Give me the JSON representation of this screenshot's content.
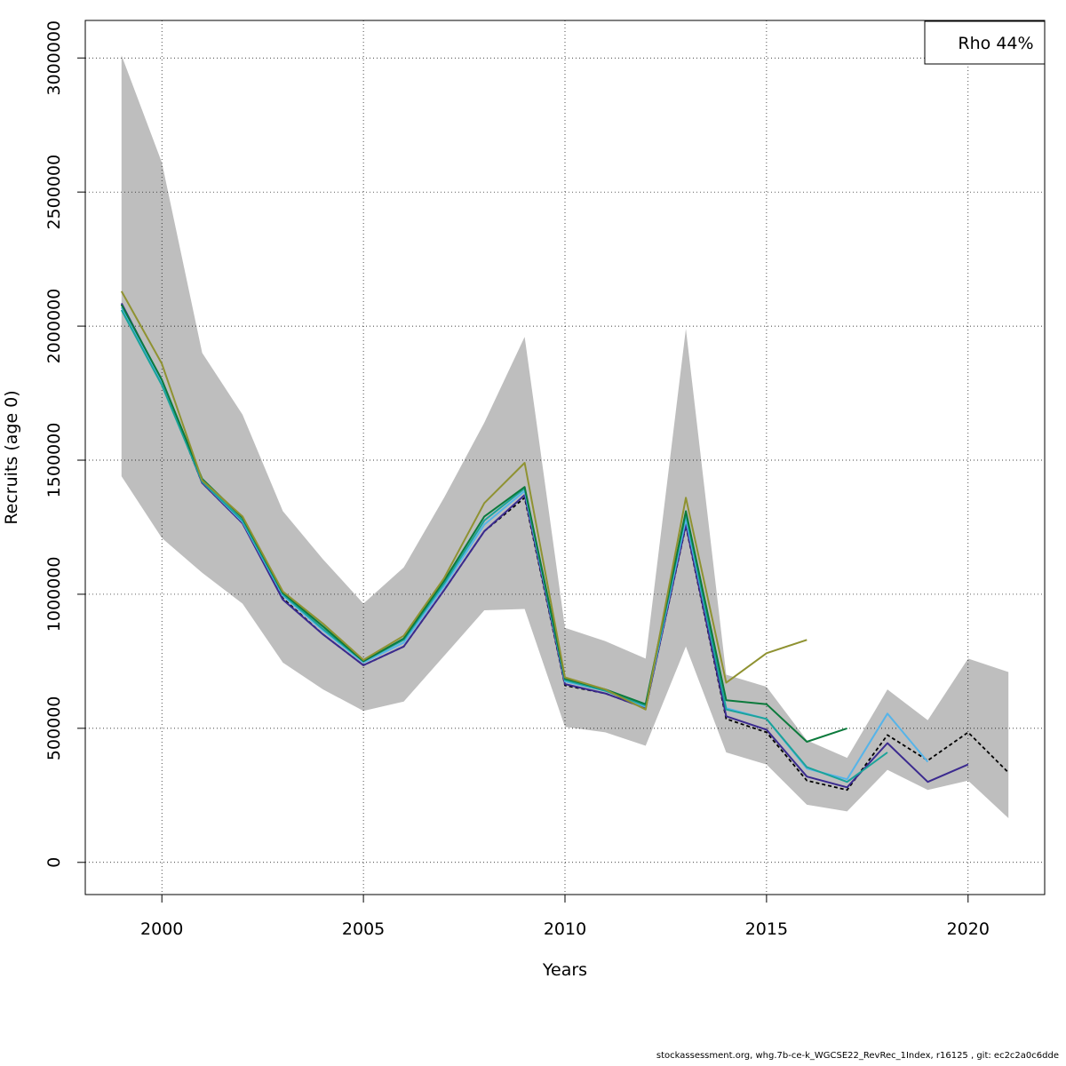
{
  "chart_data": {
    "type": "line",
    "xlabel": "Years",
    "ylabel": "Recruits (age 0)",
    "xlim": [
      1998.1,
      2021.9
    ],
    "ylim": [
      -120000,
      3140000
    ],
    "x_ticks": [
      2000,
      2005,
      2010,
      2015,
      2020
    ],
    "y_ticks": [
      0,
      500000,
      1000000,
      1500000,
      2000000,
      2500000,
      3000000
    ],
    "grid": true,
    "legend_text": "Rho 44%",
    "legend_position": "top-right",
    "band": {
      "color": "#bebebe",
      "x": [
        1999,
        2000,
        2001,
        2002,
        2003,
        2004,
        2005,
        2006,
        2007,
        2008,
        2009,
        2010,
        2011,
        2012,
        2013,
        2014,
        2015,
        2016,
        2017,
        2018,
        2019,
        2020,
        2021
      ],
      "upper": [
        3010000,
        2610000,
        1900000,
        1670000,
        1310000,
        1130000,
        965000,
        1100000,
        1360000,
        1640000,
        1960000,
        875000,
        825000,
        760000,
        1990000,
        700000,
        655000,
        455000,
        390000,
        645000,
        530000,
        760000,
        710000
      ],
      "lower": [
        1440000,
        1210000,
        1080000,
        965000,
        745000,
        645000,
        565000,
        600000,
        770000,
        940000,
        945000,
        505000,
        485000,
        435000,
        805000,
        410000,
        365000,
        215000,
        190000,
        345000,
        270000,
        305000,
        165000
      ]
    },
    "series": [
      {
        "color": "#000000",
        "dashed": true,
        "x": [
          1999,
          2000,
          2001,
          2002,
          2003,
          2004,
          2005,
          2006,
          2007,
          2008,
          2009,
          2010,
          2011,
          2012,
          2013,
          2014,
          2015,
          2016,
          2017,
          2018,
          2019,
          2020,
          2021
        ],
        "y": [
          2080000,
          1790000,
          1415000,
          1265000,
          985000,
          850000,
          735000,
          805000,
          1015000,
          1235000,
          1360000,
          660000,
          630000,
          575000,
          1255000,
          535000,
          485000,
          305000,
          270000,
          475000,
          380000,
          485000,
          335000
        ]
      },
      {
        "color": "#3b2a8f",
        "x": [
          1999,
          2000,
          2001,
          2002,
          2003,
          2004,
          2005,
          2006,
          2007,
          2008,
          2009,
          2010,
          2011,
          2012,
          2013,
          2014,
          2015,
          2016,
          2017,
          2018,
          2019,
          2020
        ],
        "y": [
          2085000,
          1795000,
          1415000,
          1265000,
          980000,
          850000,
          735000,
          805000,
          1015000,
          1235000,
          1370000,
          665000,
          630000,
          575000,
          1260000,
          545000,
          495000,
          320000,
          280000,
          445000,
          300000,
          365000
        ]
      },
      {
        "color": "#56b4e9",
        "x": [
          1999,
          2000,
          2001,
          2002,
          2003,
          2004,
          2005,
          2006,
          2007,
          2008,
          2009,
          2010,
          2011,
          2012,
          2013,
          2014,
          2015,
          2016,
          2017,
          2018,
          2019
        ],
        "y": [
          2070000,
          1790000,
          1420000,
          1270000,
          995000,
          865000,
          745000,
          820000,
          1030000,
          1260000,
          1385000,
          675000,
          640000,
          580000,
          1280000,
          575000,
          535000,
          350000,
          310000,
          555000,
          375000
        ]
      },
      {
        "color": "#1aa39a",
        "x": [
          1999,
          2000,
          2001,
          2002,
          2003,
          2004,
          2005,
          2006,
          2007,
          2008,
          2009,
          2010,
          2011,
          2012,
          2013,
          2014,
          2015,
          2016,
          2017,
          2018
        ],
        "y": [
          2060000,
          1780000,
          1420000,
          1275000,
          1000000,
          870000,
          750000,
          830000,
          1040000,
          1275000,
          1395000,
          680000,
          640000,
          585000,
          1300000,
          570000,
          535000,
          355000,
          300000,
          410000
        ]
      },
      {
        "color": "#0c7a3c",
        "x": [
          1999,
          2000,
          2001,
          2002,
          2003,
          2004,
          2005,
          2006,
          2007,
          2008,
          2009,
          2010,
          2011,
          2012,
          2013,
          2014,
          2015,
          2016,
          2017
        ],
        "y": [
          2080000,
          1800000,
          1430000,
          1285000,
          1005000,
          880000,
          750000,
          835000,
          1050000,
          1290000,
          1400000,
          685000,
          645000,
          590000,
          1310000,
          605000,
          590000,
          450000,
          500000
        ]
      },
      {
        "color": "#8f9231",
        "x": [
          1999,
          2000,
          2001,
          2002,
          2003,
          2004,
          2005,
          2006,
          2007,
          2008,
          2009,
          2010,
          2011,
          2012,
          2013,
          2014,
          2015,
          2016
        ],
        "y": [
          2130000,
          1860000,
          1425000,
          1290000,
          1010000,
          890000,
          755000,
          845000,
          1060000,
          1340000,
          1490000,
          690000,
          645000,
          570000,
          1360000,
          670000,
          780000,
          830000
        ]
      }
    ]
  },
  "footer": {
    "caption": "stockassessment.org, whg.7b-ce-k_WGCSE22_RevRec_1Index, r16125 , git: ec2c2a0c6dde"
  }
}
